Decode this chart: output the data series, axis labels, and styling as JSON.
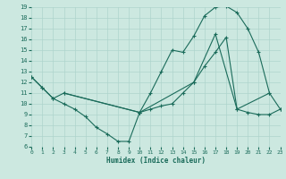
{
  "xlabel": "Humidex (Indice chaleur)",
  "bg_color": "#cce8e0",
  "line_color": "#1a6b5a",
  "grid_color": "#aed4cc",
  "ylim": [
    6,
    19
  ],
  "xlim": [
    0,
    23
  ],
  "yticks": [
    6,
    7,
    8,
    9,
    10,
    11,
    12,
    13,
    14,
    15,
    16,
    17,
    18,
    19
  ],
  "xticks": [
    0,
    1,
    2,
    3,
    4,
    5,
    6,
    7,
    8,
    9,
    10,
    11,
    12,
    13,
    14,
    15,
    16,
    17,
    18,
    19,
    20,
    21,
    22,
    23
  ],
  "line1_x": [
    0,
    1,
    2,
    3,
    10,
    11,
    12,
    13,
    14,
    15,
    16,
    17,
    18,
    19,
    20,
    21,
    22,
    23
  ],
  "line1_y": [
    12.5,
    11.5,
    10.5,
    11.0,
    9.2,
    11.0,
    13.0,
    15.0,
    14.8,
    16.3,
    18.2,
    19.0,
    19.1,
    18.5,
    17.0,
    14.8,
    11.0,
    9.5
  ],
  "line2_x": [
    0,
    1,
    2,
    3,
    4,
    5,
    6,
    7,
    8,
    9,
    10,
    11,
    12,
    13,
    14,
    15,
    16,
    17,
    18,
    19,
    20,
    21,
    22,
    23
  ],
  "line2_y": [
    12.5,
    11.5,
    10.5,
    10.0,
    9.5,
    8.8,
    7.8,
    7.2,
    6.5,
    6.5,
    9.2,
    9.5,
    9.8,
    10.0,
    11.0,
    12.0,
    13.5,
    14.8,
    16.2,
    9.5,
    9.2,
    9.0,
    9.0,
    9.5
  ],
  "line3_x": [
    3,
    10,
    15,
    17,
    19,
    22
  ],
  "line3_y": [
    11.0,
    9.2,
    12.0,
    16.5,
    9.5,
    11.0
  ]
}
